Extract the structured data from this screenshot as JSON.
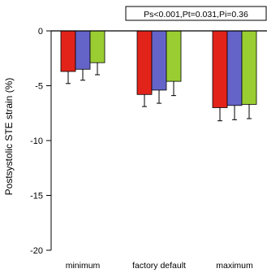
{
  "chart_data": {
    "type": "bar",
    "title": "",
    "xlabel": "",
    "ylabel": "Postsystolic STE strain (%)",
    "ylim": [
      -20,
      0
    ],
    "yticks": [
      "0",
      "-5",
      "-10",
      "-15",
      "-20"
    ],
    "categories": [
      "minimum",
      "factory default",
      "maximum"
    ],
    "series": [
      {
        "values": [
          -3.7,
          -5.8,
          -7.0
        ],
        "errors": [
          1.1,
          1.1,
          1.2
        ],
        "color": "#e2231a"
      },
      {
        "values": [
          -3.5,
          -5.4,
          -6.8
        ],
        "errors": [
          1.0,
          1.2,
          1.3
        ],
        "color": "#6464c8"
      },
      {
        "values": [
          -2.9,
          -4.6,
          -6.7
        ],
        "errors": [
          1.1,
          1.3,
          1.3
        ],
        "color": "#9acd32"
      }
    ],
    "annotation": "Ps<0.001,Pt=0.031,Pi=0.36",
    "grid": false
  }
}
